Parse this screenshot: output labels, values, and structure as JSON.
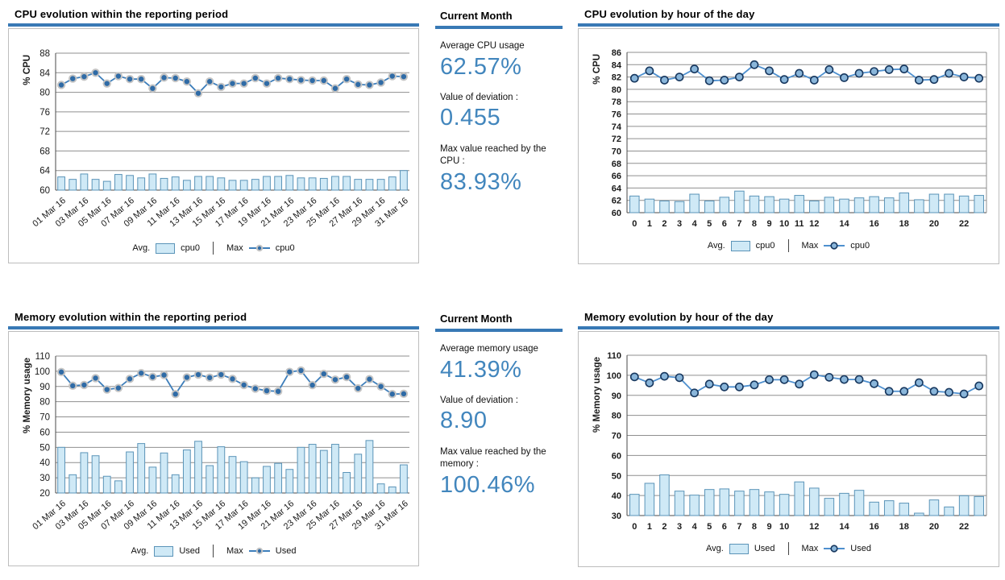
{
  "colors": {
    "accent_underline": "#3879b5",
    "stat_value_blue": "#4286bd",
    "bar_fill": "#cfe9f6",
    "bar_stroke": "#5b94b8",
    "daily_line": "#3e7eba",
    "daily_marker_fill": "#2f6ba6",
    "daily_marker_ring": "#c4c4c4",
    "hourly_line": "#4e90cf",
    "hourly_marker_fill": "#8ab6da",
    "hourly_marker_stroke": "#17375e",
    "grid": "#8f8f8f",
    "axis": "#4a4a4a",
    "frame_border": "#bdbdbd"
  },
  "panels": [
    {
      "title": "Current Month",
      "stats": [
        {
          "label": "Average CPU usage",
          "value": "62.57%"
        },
        {
          "label": "Value of deviation :",
          "value": "0.455"
        },
        {
          "label": "Max value reached by the CPU :",
          "value": "83.93%"
        }
      ]
    },
    {
      "title": "Current Month",
      "stats": [
        {
          "label": "Average memory usage",
          "value": "41.39%"
        },
        {
          "label": "Value of deviation :",
          "value": "8.90"
        },
        {
          "label": "Max value reached by the memory :",
          "value": "100.46%"
        }
      ]
    }
  ],
  "chart_data": [
    {
      "type": "bar+line",
      "title": "CPU evolution within the reporting period",
      "xlabel": "",
      "ylabel": "% CPU",
      "ylim": [
        60,
        88
      ],
      "ytick_step": 4,
      "grid": true,
      "legend_position": "bottom",
      "categories": [
        "01 Mar 16",
        "02 Mar 16",
        "03 Mar 16",
        "04 Mar 16",
        "05 Mar 16",
        "06 Mar 16",
        "07 Mar 16",
        "08 Mar 16",
        "09 Mar 16",
        "10 Mar 16",
        "11 Mar 16",
        "12 Mar 16",
        "13 Mar 16",
        "14 Mar 16",
        "15 Mar 16",
        "16 Mar 16",
        "17 Mar 16",
        "18 Mar 16",
        "19 Mar 16",
        "20 Mar 16",
        "21 Mar 16",
        "22 Mar 16",
        "23 Mar 16",
        "24 Mar 16",
        "25 Mar 16",
        "26 Mar 16",
        "27 Mar 16",
        "28 Mar 16",
        "29 Mar 16",
        "30 Mar 16",
        "31 Mar 16"
      ],
      "x_labels": [
        "01 Mar 16",
        "",
        "03 Mar 16",
        "",
        "05 Mar 16",
        "",
        "07 Mar 16",
        "",
        "09 Mar 16",
        "",
        "11 Mar 16",
        "",
        "13 Mar 16",
        "",
        "15 Mar 16",
        "",
        "17 Mar 16",
        "",
        "19 Mar 16",
        "",
        "21 Mar 16",
        "",
        "23 Mar 16",
        "",
        "25 Mar 16",
        "",
        "27 Mar 16",
        "",
        "29 Mar 16",
        "",
        "31 Mar 16"
      ],
      "series": [
        {
          "name": "cpu0",
          "role": "Avg.",
          "type": "bar",
          "values": [
            62.7,
            62.2,
            63.3,
            62.2,
            61.8,
            63.2,
            63.0,
            62.5,
            63.3,
            62.4,
            62.7,
            62.0,
            62.8,
            62.8,
            62.5,
            62.0,
            62.0,
            62.2,
            62.8,
            62.8,
            63.0,
            62.5,
            62.5,
            62.4,
            62.8,
            62.8,
            62.2,
            62.2,
            62.2,
            62.7,
            64.0
          ]
        },
        {
          "name": "cpu0",
          "role": "Max",
          "type": "line",
          "values": [
            81.5,
            82.8,
            83.2,
            84.0,
            81.8,
            83.3,
            82.7,
            82.7,
            80.8,
            83.0,
            82.9,
            82.2,
            79.8,
            82.2,
            81.1,
            81.8,
            81.8,
            82.9,
            81.8,
            82.9,
            82.7,
            82.5,
            82.4,
            82.4,
            80.8,
            82.7,
            81.6,
            81.5,
            82.0,
            83.3,
            83.2
          ]
        }
      ],
      "legend": {
        "avg_label": "Avg.",
        "avg_series": "cpu0",
        "max_label": "Max",
        "max_series": "cpu0"
      }
    },
    {
      "type": "bar+line",
      "title": "CPU evolution by hour of the day",
      "xlabel": "",
      "ylabel": "% CPU",
      "ylim": [
        60,
        86
      ],
      "ytick_step": 2,
      "grid": true,
      "legend_position": "bottom",
      "categories": [
        "0",
        "1",
        "2",
        "3",
        "4",
        "5",
        "6",
        "7",
        "8",
        "9",
        "10",
        "11",
        "12",
        "13",
        "14",
        "15",
        "16",
        "17",
        "18",
        "19",
        "20",
        "21",
        "22",
        "23"
      ],
      "x_labels": [
        "0",
        "1",
        "2",
        "3",
        "4",
        "5",
        "6",
        "7",
        "8",
        "9",
        "10",
        "11",
        "12",
        "",
        "14",
        "",
        "16",
        "",
        "18",
        "",
        "20",
        "",
        "22",
        ""
      ],
      "series": [
        {
          "name": "cpu0",
          "role": "Avg.",
          "type": "bar",
          "values": [
            62.7,
            62.2,
            61.9,
            61.8,
            63.0,
            61.9,
            62.5,
            63.5,
            62.7,
            62.6,
            62.2,
            62.8,
            61.9,
            62.5,
            62.2,
            62.4,
            62.6,
            62.4,
            63.2,
            62.1,
            63.0,
            63.0,
            62.7,
            62.8
          ]
        },
        {
          "name": "cpu0",
          "role": "Max",
          "type": "line",
          "values": [
            81.8,
            83.0,
            81.5,
            82.0,
            83.3,
            81.4,
            81.5,
            82.0,
            84.0,
            83.0,
            81.6,
            82.6,
            81.5,
            83.2,
            81.9,
            82.6,
            82.9,
            83.2,
            83.3,
            81.5,
            81.6,
            82.6,
            82.0,
            81.8
          ]
        }
      ],
      "legend": {
        "avg_label": "Avg.",
        "avg_series": "cpu0",
        "max_label": "Max",
        "max_series": "cpu0"
      }
    },
    {
      "type": "bar+line",
      "title": "Memory evolution within the reporting period",
      "xlabel": "",
      "ylabel": "% Memory usage",
      "ylim": [
        20,
        110
      ],
      "ytick_step": 10,
      "grid": true,
      "legend_position": "bottom",
      "categories": [
        "01 Mar 16",
        "02 Mar 16",
        "03 Mar 16",
        "04 Mar 16",
        "05 Mar 16",
        "06 Mar 16",
        "07 Mar 16",
        "08 Mar 16",
        "09 Mar 16",
        "10 Mar 16",
        "11 Mar 16",
        "12 Mar 16",
        "13 Mar 16",
        "14 Mar 16",
        "15 Mar 16",
        "16 Mar 16",
        "17 Mar 16",
        "18 Mar 16",
        "19 Mar 16",
        "20 Mar 16",
        "21 Mar 16",
        "22 Mar 16",
        "23 Mar 16",
        "24 Mar 16",
        "25 Mar 16",
        "26 Mar 16",
        "27 Mar 16",
        "28 Mar 16",
        "29 Mar 16",
        "30 Mar 16",
        "31 Mar 16"
      ],
      "x_labels": [
        "01 Mar 16",
        "",
        "03 Mar 16",
        "",
        "05 Mar 16",
        "",
        "07 Mar 16",
        "",
        "09 Mar 16",
        "",
        "11 Mar 16",
        "",
        "13 Mar 16",
        "",
        "15 Mar 16",
        "",
        "17 Mar 16",
        "",
        "19 Mar 16",
        "",
        "21 Mar 16",
        "",
        "23 Mar 16",
        "",
        "25 Mar 16",
        "",
        "27 Mar 16",
        "",
        "29 Mar 16",
        "",
        "31 Mar 16"
      ],
      "series": [
        {
          "name": "Used",
          "role": "Avg.",
          "type": "bar",
          "values": [
            50.0,
            32.0,
            46.5,
            44.5,
            31.0,
            28.0,
            47.0,
            52.5,
            37.0,
            46.3,
            32.0,
            48.3,
            54.0,
            38.0,
            50.4,
            44.0,
            40.6,
            30.0,
            37.5,
            39.5,
            35.5,
            50.0,
            52.0,
            48.0,
            52.0,
            33.5,
            45.5,
            54.5,
            26.0,
            24.0,
            38.5
          ]
        },
        {
          "name": "Used",
          "role": "Max",
          "type": "line",
          "values": [
            99.5,
            90.5,
            91.0,
            95.5,
            88.0,
            89.0,
            95.0,
            98.8,
            96.3,
            97.5,
            85.0,
            96.0,
            97.8,
            95.8,
            97.8,
            95.0,
            91.0,
            88.6,
            87.2,
            86.8,
            99.6,
            100.5,
            90.9,
            98.3,
            94.5,
            96.2,
            88.8,
            94.8,
            90.0,
            85.0,
            85.2
          ]
        }
      ],
      "legend": {
        "avg_label": "Avg.",
        "avg_series": "Used",
        "max_label": "Max",
        "max_series": "Used"
      }
    },
    {
      "type": "bar+line",
      "title": "Memory evolution by hour of the day",
      "xlabel": "",
      "ylabel": "% Memory usage",
      "ylim": [
        30,
        110
      ],
      "ytick_step": 10,
      "grid": true,
      "legend_position": "bottom",
      "categories": [
        "0",
        "1",
        "2",
        "3",
        "4",
        "5",
        "6",
        "7",
        "8",
        "9",
        "10",
        "11",
        "12",
        "13",
        "14",
        "15",
        "16",
        "17",
        "18",
        "19",
        "20",
        "21",
        "22",
        "23"
      ],
      "x_labels": [
        "0",
        "1",
        "2",
        "3",
        "4",
        "5",
        "6",
        "7",
        "8",
        "9",
        "10",
        "",
        "12",
        "",
        "14",
        "",
        "16",
        "",
        "18",
        "",
        "20",
        "",
        "22",
        ""
      ],
      "series": [
        {
          "name": "Used",
          "role": "Avg.",
          "type": "bar",
          "values": [
            40.6,
            46.1,
            50.3,
            42.2,
            40.2,
            43.0,
            43.3,
            42.2,
            43.0,
            41.8,
            40.6,
            46.8,
            43.7,
            38.6,
            41.1,
            42.6,
            36.7,
            37.4,
            36.2,
            31.2,
            37.8,
            34.3,
            39.9,
            39.5
          ]
        },
        {
          "name": "Used",
          "role": "Max",
          "type": "line",
          "values": [
            99.2,
            96.2,
            99.5,
            98.8,
            91.2,
            95.6,
            94.2,
            94.2,
            95.2,
            97.8,
            97.8,
            95.6,
            100.3,
            99.0,
            97.9,
            97.9,
            95.8,
            92.0,
            92.0,
            96.3,
            92.0,
            91.5,
            90.7,
            94.7
          ]
        }
      ],
      "legend": {
        "avg_label": "Avg.",
        "avg_series": "Used",
        "max_label": "Max",
        "max_series": "Used"
      }
    }
  ]
}
